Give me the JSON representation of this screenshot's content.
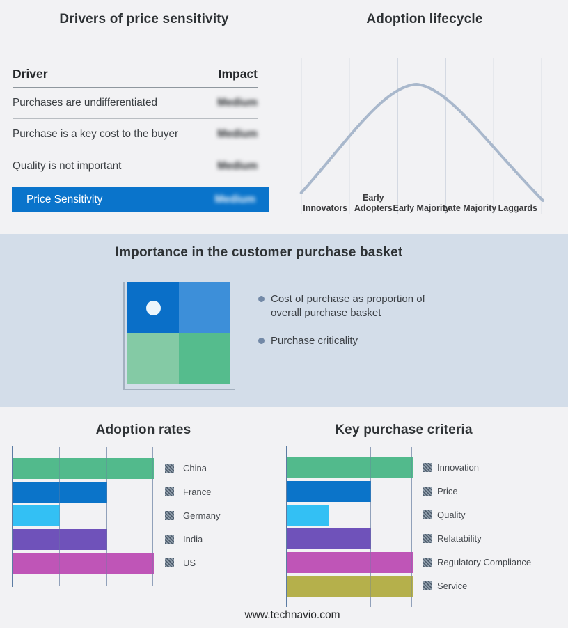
{
  "page": {
    "background": "#f2f2f4",
    "band_background": "#d3dde9"
  },
  "drivers_panel": {
    "title": "Drivers of price sensitivity",
    "columns": {
      "driver": "Driver",
      "impact": "Impact"
    },
    "rows": [
      {
        "driver": "Purchases are undifferentiated",
        "impact": "Medium",
        "blurred": true,
        "highlight": false
      },
      {
        "driver": "Purchase is a key cost to the buyer",
        "impact": "Medium",
        "blurred": true,
        "highlight": false
      },
      {
        "driver": "Quality is not important",
        "impact": "Medium",
        "blurred": true,
        "highlight": false
      },
      {
        "driver": "Price Sensitivity",
        "impact": "Medium",
        "blurred": true,
        "highlight": true
      }
    ],
    "highlight_color": "#0a74cb"
  },
  "adoption_lifecycle": {
    "title": "Adoption lifecycle",
    "stages": [
      "Innovators",
      "Early Adopters",
      "Early Majority",
      "Late Majority",
      "Laggards"
    ],
    "curve_color": "#a9b8cc",
    "curve_shape": "bell curve peaking at Early Majority"
  },
  "purchase_basket": {
    "title": "Importance in the customer purchase basket",
    "bullets": [
      "Cost of purchase as proportion of overall purchase basket",
      "Purchase criticality"
    ],
    "quadrant_colors": {
      "top_left": "#0a6fc8",
      "top_right": "#3d8fd9",
      "bottom_left": "#84caa5",
      "bottom_right": "#55bc8d"
    },
    "marker_position": "top-left quadrant, white dot"
  },
  "chart_data": [
    {
      "type": "line",
      "title": "Adoption lifecycle",
      "x": [
        "Innovators",
        "Early Adopters",
        "Early Majority",
        "Late Majority",
        "Laggards"
      ],
      "description": "Unlabeled bell-shaped adoption curve rising from Innovators, peaking near Early Majority, falling through Laggards",
      "grid": "vertical stage separators",
      "legend_position": "none"
    },
    {
      "type": "bar",
      "orientation": "horizontal",
      "title": "Adoption rates",
      "categories": [
        "China",
        "France",
        "Germany",
        "India",
        "US"
      ],
      "values": [
        3,
        2,
        1,
        2,
        3
      ],
      "xlim": [
        0,
        3
      ],
      "colors": [
        "#52ba8c",
        "#0b74c9",
        "#33c0f4",
        "#6f52ba",
        "#bf55b7"
      ],
      "grid": true,
      "legend_position": "right"
    },
    {
      "type": "bar",
      "orientation": "horizontal",
      "title": "Key purchase criteria",
      "categories": [
        "Innovation",
        "Price",
        "Quality",
        "Relatability",
        "Regulatory Compliance",
        "Service"
      ],
      "values": [
        3,
        2,
        1,
        2,
        3,
        3
      ],
      "xlim": [
        0,
        3
      ],
      "colors": [
        "#52ba8c",
        "#0b74c9",
        "#33c0f4",
        "#6f52ba",
        "#bf55b7",
        "#b5b04b"
      ],
      "grid": true,
      "legend_position": "right"
    }
  ],
  "footer": {
    "url": "www.technavio.com"
  }
}
